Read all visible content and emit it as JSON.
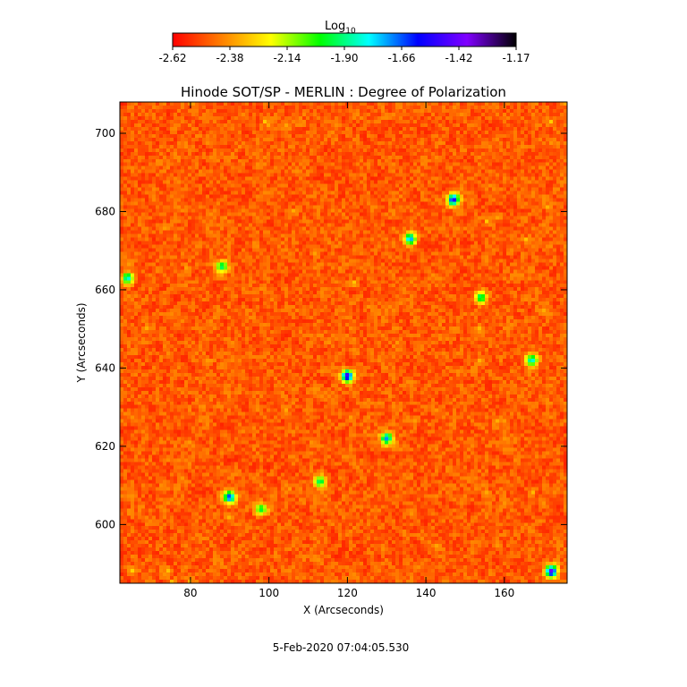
{
  "chart_data": {
    "type": "heatmap",
    "title": "Hinode SOT/SP - MERLIN : Degree of Polarization",
    "xlabel": "X (Arcseconds)",
    "ylabel": "Y (Arcseconds)",
    "xlim": [
      62,
      176
    ],
    "ylim": [
      585,
      708
    ],
    "x_ticks": [
      80,
      100,
      120,
      140,
      160
    ],
    "y_ticks": [
      600,
      620,
      640,
      660,
      680,
      700
    ],
    "colorbar": {
      "title": "Log",
      "title_subscript": "10",
      "range": [
        -2.62,
        -1.17
      ],
      "ticks": [
        "-2.62",
        "-2.38",
        "-2.14",
        "-1.90",
        "-1.66",
        "-1.42",
        "-1.17"
      ],
      "colormap": [
        "#ff0000",
        "#ff8000",
        "#ffff00",
        "#00ff00",
        "#00ffff",
        "#0000ff",
        "#8000ff",
        "#000000"
      ]
    },
    "features": [
      {
        "x": 120,
        "y": 638,
        "value": -1.45
      },
      {
        "x": 147,
        "y": 683,
        "value": -1.5
      },
      {
        "x": 136,
        "y": 673,
        "value": -1.7
      },
      {
        "x": 172,
        "y": 588,
        "value": -1.4
      },
      {
        "x": 90,
        "y": 607,
        "value": -1.6
      },
      {
        "x": 113,
        "y": 611,
        "value": -1.9
      },
      {
        "x": 88,
        "y": 666,
        "value": -1.9
      },
      {
        "x": 130,
        "y": 622,
        "value": -1.7
      },
      {
        "x": 64,
        "y": 663,
        "value": -1.8
      },
      {
        "x": 167,
        "y": 642,
        "value": -1.8
      },
      {
        "x": 98,
        "y": 604,
        "value": -1.95
      },
      {
        "x": 154,
        "y": 658,
        "value": -1.9
      }
    ],
    "background_value": -2.52
  },
  "footer": {
    "timestamp": "5-Feb-2020 07:04:05.530"
  }
}
